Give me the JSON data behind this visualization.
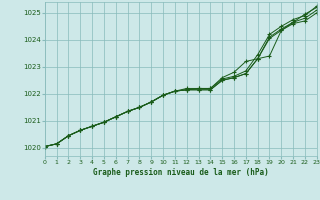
{
  "background_color": "#cde8e8",
  "plot_bg_color": "#cde8e8",
  "grid_color": "#88bbbb",
  "line_color": "#1a5c1a",
  "xlabel": "Graphe pression niveau de la mer (hPa)",
  "ylim": [
    1019.7,
    1025.4
  ],
  "xlim": [
    0,
    23
  ],
  "yticks": [
    1020,
    1021,
    1022,
    1023,
    1024,
    1025
  ],
  "xticks": [
    0,
    1,
    2,
    3,
    4,
    5,
    6,
    7,
    8,
    9,
    10,
    11,
    12,
    13,
    14,
    15,
    16,
    17,
    18,
    19,
    20,
    21,
    22,
    23
  ],
  "series": [
    [
      1020.05,
      1020.15,
      1020.45,
      1020.65,
      1020.8,
      1020.95,
      1021.15,
      1021.35,
      1021.5,
      1021.7,
      1021.95,
      1022.1,
      1022.15,
      1022.15,
      1022.15,
      1022.5,
      1022.6,
      1022.75,
      1023.3,
      1024.05,
      1024.35,
      1024.6,
      1024.7,
      1025.0
    ],
    [
      1020.05,
      1020.15,
      1020.45,
      1020.65,
      1020.8,
      1020.95,
      1021.15,
      1021.35,
      1021.5,
      1021.7,
      1021.95,
      1022.1,
      1022.15,
      1022.15,
      1022.15,
      1022.5,
      1022.6,
      1022.75,
      1023.3,
      1024.1,
      1024.4,
      1024.65,
      1024.8,
      1025.1
    ],
    [
      1020.05,
      1020.15,
      1020.45,
      1020.65,
      1020.8,
      1020.95,
      1021.15,
      1021.35,
      1021.5,
      1021.7,
      1021.95,
      1022.1,
      1022.15,
      1022.2,
      1022.2,
      1022.55,
      1022.65,
      1022.85,
      1023.45,
      1024.2,
      1024.5,
      1024.75,
      1024.9,
      1025.25
    ],
    [
      1020.05,
      1020.15,
      1020.45,
      1020.65,
      1020.8,
      1020.95,
      1021.15,
      1021.35,
      1021.5,
      1021.7,
      1021.95,
      1022.1,
      1022.2,
      1022.2,
      1022.2,
      1022.6,
      1022.8,
      1023.2,
      1023.3,
      1023.4,
      1024.35,
      1024.65,
      1024.95,
      1025.2
    ]
  ]
}
